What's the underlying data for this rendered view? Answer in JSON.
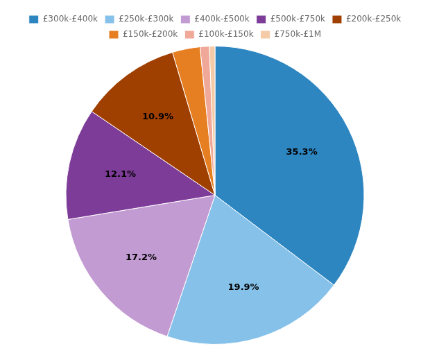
{
  "chart_data": {
    "type": "pie",
    "categories": [
      "£300k-£400k",
      "£250k-£300k",
      "£400k-£500k",
      "£500k-£750k",
      "£200k-£250k",
      "£150k-£200k",
      "£100k-£150k",
      "£750k-£1M"
    ],
    "values": [
      35.3,
      19.9,
      17.2,
      12.1,
      10.9,
      3.0,
      1.0,
      0.6
    ],
    "value_labels": [
      "35.3%",
      "19.9%",
      "17.2%",
      "12.1%",
      "10.9%",
      null,
      null,
      null
    ],
    "colors": [
      "#2e86c1",
      "#85c1e9",
      "#c39bd3",
      "#7d3c98",
      "#a04000",
      "#e67e22",
      "#f0a899",
      "#f5cba7"
    ],
    "data_labels": true,
    "legend": "top"
  }
}
